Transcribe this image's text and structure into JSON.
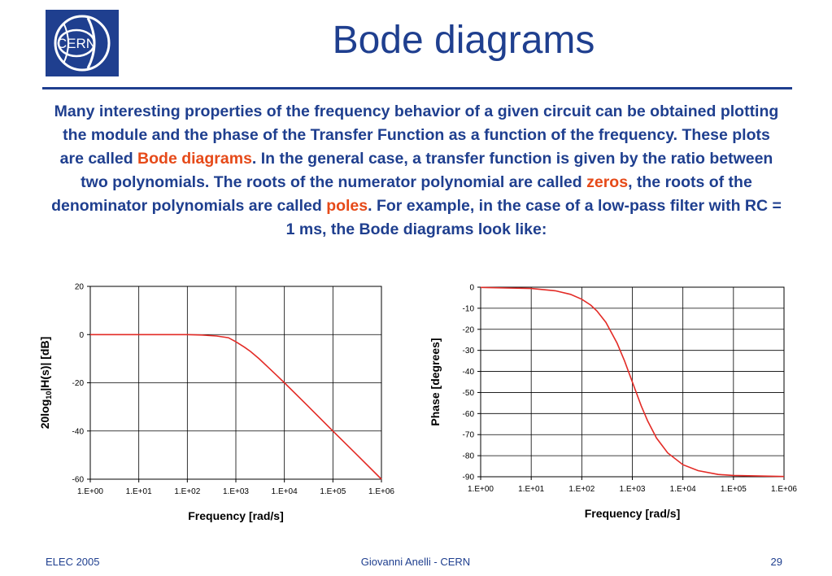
{
  "slide": {
    "title": "Bode diagrams",
    "accent_color": "#1f3f8f",
    "highlight_color": "#e64a19",
    "logo_text": "CERN",
    "intro": {
      "p1": "Many interesting properties of the frequency behavior of a given circuit can be obtained plotting the module and the phase of the Transfer Function as a function of the frequency. These plots are called ",
      "h1": "Bode diagrams",
      "p2": ". In the general case, a transfer function is given by the ratio between two polynomials. The roots of the numerator polynomial are called ",
      "h2": "zeros",
      "p3": ", the roots of the denominator polynomials are called ",
      "h3": "poles",
      "p4": ". For example, in the case of a low-pass filter with RC = 1 ms, the Bode diagrams look like:"
    }
  },
  "footer": {
    "left": "ELEC 2005",
    "center": "Giovanni Anelli - CERN",
    "right": "29"
  },
  "chart_data": [
    {
      "type": "line",
      "xlabel": "Frequency [rad/s]",
      "ylabel_parts": [
        "20log",
        "10",
        "|H(s)| [dB]"
      ],
      "x_scale": "log",
      "x_ticks": [
        "1.E+00",
        "1.E+01",
        "1.E+02",
        "1.E+03",
        "1.E+04",
        "1.E+05",
        "1.E+06"
      ],
      "xlim": [
        1,
        1000000
      ],
      "ylim": [
        -60,
        20
      ],
      "y_ticks": [
        "20",
        "0",
        "-20",
        "-40",
        "-60"
      ],
      "grid": true,
      "line_color": "#e32b26",
      "series": [
        {
          "x": [
            1,
            10,
            100,
            200,
            400,
            700,
            1000,
            1500,
            2000,
            3000,
            5000,
            7000,
            10000,
            30000,
            100000,
            300000,
            1000000
          ],
          "values": [
            0,
            0,
            0,
            -0.2,
            -0.6,
            -1.3,
            -3.0,
            -5.2,
            -7.0,
            -10.0,
            -14.2,
            -17.0,
            -20.0,
            -29.5,
            -40.0,
            -49.5,
            -60.0
          ]
        }
      ]
    },
    {
      "type": "line",
      "xlabel": "Frequency [rad/s]",
      "ylabel": "Phase [degrees]",
      "x_scale": "log",
      "x_ticks": [
        "1.E+00",
        "1.E+01",
        "1.E+02",
        "1.E+03",
        "1.E+04",
        "1.E+05",
        "1.E+06"
      ],
      "xlim": [
        1,
        1000000
      ],
      "ylim": [
        -90,
        0
      ],
      "y_ticks": [
        "0",
        "-10",
        "-20",
        "-30",
        "-40",
        "-50",
        "-60",
        "-70",
        "-80",
        "-90"
      ],
      "grid": true,
      "line_color": "#e32b26",
      "series": [
        {
          "x": [
            1,
            10,
            30,
            60,
            100,
            150,
            200,
            300,
            500,
            700,
            1000,
            1500,
            2000,
            3000,
            5000,
            10000,
            20000,
            50000,
            100000,
            1000000
          ],
          "values": [
            -0.1,
            -0.6,
            -1.7,
            -3.4,
            -5.7,
            -8.5,
            -11.3,
            -16.7,
            -26.6,
            -35.0,
            -45.0,
            -56.3,
            -63.4,
            -71.6,
            -78.7,
            -84.3,
            -87.1,
            -88.9,
            -89.4,
            -89.9
          ]
        }
      ]
    }
  ]
}
